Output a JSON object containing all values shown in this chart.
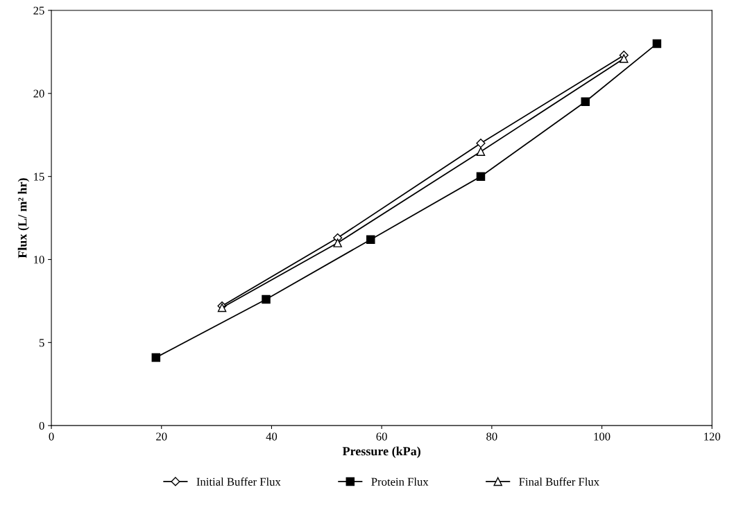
{
  "chart_data": {
    "type": "line",
    "xlabel": "Pressure (kPa)",
    "ylabel": "Flux (L/ m² hr)",
    "xlim": [
      0,
      120
    ],
    "xticks": [
      0,
      20,
      40,
      60,
      80,
      100,
      120
    ],
    "ylim": [
      0,
      25
    ],
    "yticks": [
      0,
      5,
      10,
      15,
      20,
      25
    ],
    "grid": false,
    "legend": "bottom",
    "line_style": "solid",
    "series": [
      {
        "name": "Initial Buffer Flux",
        "color": "#000000",
        "marker": "diamond",
        "x": [
          31,
          52,
          78,
          104
        ],
        "values": [
          7.2,
          11.3,
          17.0,
          22.3
        ]
      },
      {
        "name": "Protein Flux",
        "color": "#000000",
        "marker": "square",
        "x": [
          19,
          39,
          58,
          78,
          97,
          110
        ],
        "values": [
          4.1,
          7.6,
          11.2,
          15.0,
          19.5,
          23.0
        ]
      },
      {
        "name": "Final Buffer Flux",
        "color": "#000000",
        "marker": "triangle",
        "x": [
          31,
          52,
          78,
          104
        ],
        "values": [
          7.1,
          11.0,
          16.5,
          22.1
        ]
      }
    ]
  }
}
